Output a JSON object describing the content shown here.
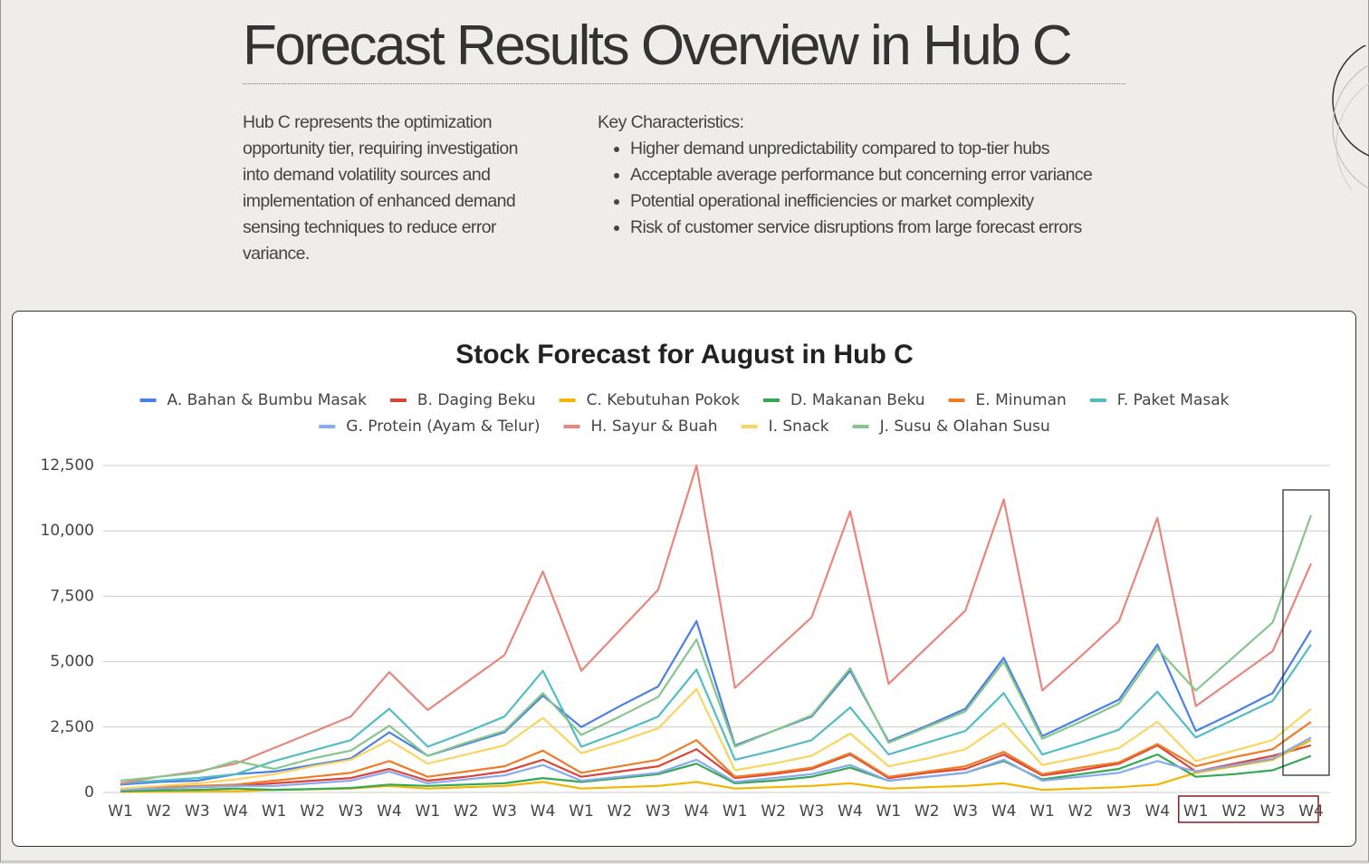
{
  "header": {
    "title": "Forecast Results Overview in Hub C"
  },
  "intro": "Hub C represents the optimization opportunity tier, requiring investigation into demand volatility sources and implementation of enhanced demand sensing techniques to reduce error variance.",
  "key_characteristics": {
    "heading": "Key Characteristics:",
    "items": [
      "Higher demand unpredictability compared to top-tier hubs",
      "Acceptable average performance but concerning error variance",
      "Potential operational inefficiencies or market complexity",
      "Risk of customer service disruptions from large forecast errors"
    ]
  },
  "chart_data": {
    "type": "line",
    "title": "Stock Forecast for August in Hub C",
    "categories": [
      "W1",
      "W2",
      "W3",
      "W4",
      "W1",
      "W2",
      "W3",
      "W4",
      "W1",
      "W2",
      "W3",
      "W4",
      "W1",
      "W2",
      "W3",
      "W4",
      "W1",
      "W2",
      "W3",
      "W4",
      "W1",
      "W2",
      "W3",
      "W4",
      "W1",
      "W2",
      "W3",
      "W4",
      "W1",
      "W2",
      "W3",
      "W4"
    ],
    "ylim": [
      0,
      12500
    ],
    "yticks": [
      0,
      {
        "value": 2500,
        "label": "2,500"
      },
      {
        "value": 5000,
        "label": "5,000"
      },
      {
        "value": 7500,
        "label": "7,500"
      },
      {
        "value": 10000,
        "label": "10,000"
      },
      {
        "value": 12500,
        "label": "12,500"
      }
    ],
    "grid": true,
    "legend": "top",
    "series": [
      {
        "name": "A. Bahan & Bumbu Masak",
        "color": "#4a7fe6",
        "values": [
          300,
          400,
          450,
          700,
          800,
          1050,
          1300,
          2300,
          1400,
          1850,
          2300,
          3700,
          2500,
          3300,
          4050,
          6550,
          1800,
          2350,
          2900,
          4650,
          1950,
          2550,
          3200,
          5150,
          2150,
          2850,
          3550,
          5650,
          2350,
          3050,
          3800,
          6200
        ]
      },
      {
        "name": "B. Daging Beku",
        "color": "#db4437",
        "values": [
          100,
          150,
          200,
          250,
          350,
          450,
          550,
          900,
          450,
          600,
          800,
          1250,
          600,
          800,
          1000,
          1650,
          550,
          700,
          900,
          1450,
          550,
          750,
          900,
          1450,
          650,
          850,
          1100,
          1800,
          800,
          1100,
          1400,
          1800
        ]
      },
      {
        "name": "C. Kebutuhan Pokok",
        "color": "#f4b400",
        "values": [
          20,
          30,
          40,
          50,
          100,
          120,
          150,
          250,
          150,
          200,
          250,
          400,
          150,
          200,
          250,
          400,
          150,
          200,
          250,
          350,
          150,
          200,
          250,
          350,
          100,
          150,
          200,
          300,
          750,
          1000,
          1250,
          2000
        ]
      },
      {
        "name": "D. Makanan Beku",
        "color": "#34a853",
        "values": [
          50,
          80,
          100,
          150,
          100,
          130,
          170,
          300,
          250,
          300,
          350,
          550,
          400,
          550,
          700,
          1100,
          350,
          450,
          600,
          950,
          450,
          600,
          750,
          1200,
          500,
          700,
          900,
          1450,
          600,
          700,
          850,
          1400
        ]
      },
      {
        "name": "E. Minuman",
        "color": "#f07b25",
        "values": [
          150,
          200,
          250,
          300,
          450,
          600,
          750,
          1200,
          600,
          800,
          1000,
          1600,
          750,
          1000,
          1250,
          2000,
          600,
          750,
          950,
          1500,
          600,
          800,
          1000,
          1550,
          700,
          950,
          1150,
          1850,
          1000,
          1350,
          1650,
          2700
        ]
      },
      {
        "name": "F. Paket Masak",
        "color": "#52bcc4",
        "values": [
          350,
          450,
          550,
          700,
          1200,
          1600,
          2000,
          3200,
          1750,
          2300,
          2900,
          4650,
          1750,
          2300,
          2900,
          4700,
          1250,
          1600,
          2000,
          3250,
          1450,
          1900,
          2350,
          3800,
          1450,
          1900,
          2400,
          3850,
          2100,
          2800,
          3500,
          5650
        ]
      },
      {
        "name": "G. Protein (Ayam & Telur)",
        "color": "#8aa9f0",
        "values": [
          100,
          150,
          200,
          250,
          250,
          350,
          450,
          800,
          350,
          500,
          650,
          1050,
          450,
          600,
          750,
          1250,
          400,
          550,
          700,
          1050,
          450,
          600,
          750,
          1250,
          450,
          600,
          750,
          1200,
          800,
          1050,
          1300,
          2100
        ]
      },
      {
        "name": "H. Sayur & Buah",
        "color": "#e8867c",
        "values": [
          350,
          600,
          800,
          1100,
          1700,
          2300,
          2900,
          4600,
          3150,
          4200,
          5250,
          8450,
          4650,
          6200,
          7750,
          12500,
          4000,
          5350,
          6700,
          10750,
          4150,
          5550,
          6950,
          11200,
          3900,
          5200,
          6550,
          10500,
          3300,
          4350,
          5400,
          8750
        ]
      },
      {
        "name": "I. Snack",
        "color": "#fbd460",
        "values": [
          150,
          250,
          350,
          500,
          700,
          1000,
          1250,
          2000,
          1100,
          1450,
          1800,
          2850,
          1500,
          1950,
          2450,
          3950,
          850,
          1100,
          1400,
          2250,
          1000,
          1300,
          1650,
          2650,
          1050,
          1350,
          1700,
          2700,
          1200,
          1600,
          2000,
          3200
        ]
      },
      {
        "name": "J. Susu & Olahan Susu",
        "color": "#85c68c",
        "values": [
          450,
          600,
          750,
          1200,
          900,
          1300,
          1600,
          2550,
          1400,
          1900,
          2350,
          3800,
          2200,
          2900,
          3650,
          5850,
          1750,
          2350,
          2950,
          4750,
          1900,
          2500,
          3100,
          5000,
          2050,
          2700,
          3400,
          5500,
          3900,
          5200,
          6500,
          10600
        ]
      }
    ]
  }
}
